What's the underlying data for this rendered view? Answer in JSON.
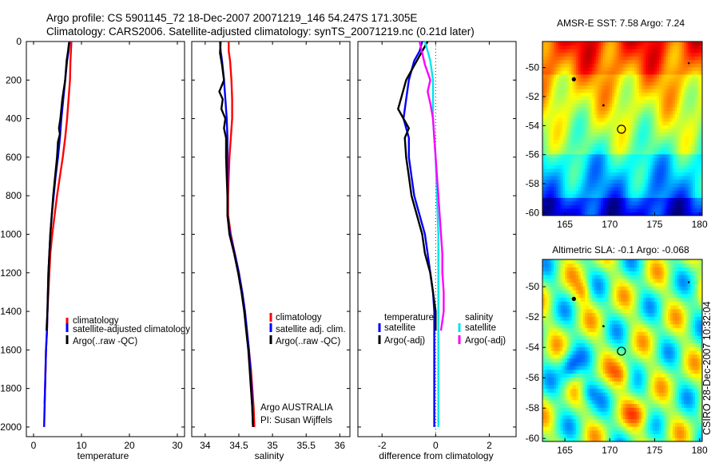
{
  "header": {
    "line1": "Argo profile: CS 5901145_72 18-Dec-2007 20071219_146 54.247S 171.305E",
    "line2": "Climatology: CARS2006. Satellite-adjusted climatology: synTS_20071219.nc (0.21d later)"
  },
  "side_stamp": "CSIRO 28-Dec-2007 10:32:04",
  "colors": {
    "red": "#ff0000",
    "blue": "#0000ff",
    "black": "#000000",
    "cyan": "#00e5ee",
    "magenta": "#ff00ff"
  },
  "chart_data": [
    {
      "type": "line",
      "id": "temperature",
      "xlabel": "temperature",
      "xlim": [
        -1.5,
        31.5
      ],
      "xticks": [
        0,
        10,
        20,
        30
      ],
      "ylim": [
        2050,
        0
      ],
      "yticks": [
        0,
        200,
        400,
        600,
        800,
        1000,
        1200,
        1400,
        1600,
        1800,
        2000
      ],
      "legend": {
        "position": "bottom-right",
        "entries": [
          "climatology",
          "satellite-adjusted climatology",
          "Argo(..raw -QC)"
        ]
      },
      "series": [
        {
          "name": "climatology",
          "color": "red",
          "points": [
            [
              7.9,
              0
            ],
            [
              7.8,
              50
            ],
            [
              7.7,
              100
            ],
            [
              7.6,
              200
            ],
            [
              7.3,
              300
            ],
            [
              7.0,
              400
            ],
            [
              6.6,
              500
            ],
            [
              6.1,
              600
            ],
            [
              5.5,
              700
            ],
            [
              4.9,
              800
            ],
            [
              4.4,
              900
            ],
            [
              3.9,
              1000
            ],
            [
              3.5,
              1100
            ],
            [
              3.3,
              1200
            ],
            [
              3.1,
              1300
            ],
            [
              2.9,
              1400
            ],
            [
              2.8,
              1500
            ],
            [
              2.6,
              1600
            ],
            [
              2.5,
              1700
            ],
            [
              2.4,
              1800
            ],
            [
              2.3,
              1880
            ]
          ]
        },
        {
          "name": "satellite-adjusted climatology",
          "color": "blue",
          "points": [
            [
              7.5,
              0
            ],
            [
              7.3,
              50
            ],
            [
              7.0,
              100
            ],
            [
              6.6,
              200
            ],
            [
              6.2,
              300
            ],
            [
              5.8,
              400
            ],
            [
              5.5,
              500
            ],
            [
              5.1,
              600
            ],
            [
              4.6,
              700
            ],
            [
              4.2,
              800
            ],
            [
              3.8,
              900
            ],
            [
              3.5,
              1000
            ],
            [
              3.3,
              1100
            ],
            [
              3.1,
              1200
            ],
            [
              3.0,
              1300
            ],
            [
              2.9,
              1400
            ],
            [
              2.8,
              1500
            ],
            [
              2.6,
              1600
            ],
            [
              2.4,
              1800
            ],
            [
              2.2,
              2000
            ]
          ]
        },
        {
          "name": "Argo(..raw -QC)",
          "color": "black",
          "points": [
            [
              7.4,
              5
            ],
            [
              7.2,
              50
            ],
            [
              6.9,
              100
            ],
            [
              6.6,
              200
            ],
            [
              6.0,
              300
            ],
            [
              5.6,
              400
            ],
            [
              5.3,
              450
            ],
            [
              5.5,
              480
            ],
            [
              5.1,
              520
            ],
            [
              4.9,
              600
            ],
            [
              4.5,
              700
            ],
            [
              4.1,
              800
            ],
            [
              3.8,
              900
            ],
            [
              3.5,
              1000
            ],
            [
              3.3,
              1100
            ],
            [
              3.1,
              1200
            ],
            [
              3.0,
              1300
            ],
            [
              2.9,
              1400
            ],
            [
              2.7,
              1500
            ]
          ]
        }
      ]
    },
    {
      "type": "line",
      "id": "salinity",
      "xlabel": "salinity",
      "xlim": [
        33.8,
        36.15
      ],
      "xticks": [
        34,
        34.5,
        35,
        35.5,
        36
      ],
      "ylim": [
        2050,
        0
      ],
      "legend": {
        "position": "bottom-right",
        "entries": [
          "climatology",
          "satellite adj. clim.",
          "Argo(..raw -QC)"
        ]
      },
      "annotation": [
        "Argo AUSTRALIA",
        "PI: Susan Wijffels"
      ],
      "series": [
        {
          "name": "climatology",
          "color": "red",
          "points": [
            [
              34.35,
              0
            ],
            [
              34.35,
              50
            ],
            [
              34.37,
              100
            ],
            [
              34.39,
              200
            ],
            [
              34.4,
              300
            ],
            [
              34.4,
              400
            ],
            [
              34.38,
              500
            ],
            [
              34.36,
              600
            ],
            [
              34.35,
              700
            ],
            [
              34.34,
              800
            ],
            [
              34.34,
              900
            ],
            [
              34.38,
              1000
            ],
            [
              34.44,
              1100
            ],
            [
              34.5,
              1200
            ],
            [
              34.55,
              1300
            ],
            [
              34.59,
              1400
            ],
            [
              34.62,
              1500
            ],
            [
              34.65,
              1600
            ],
            [
              34.68,
              1700
            ],
            [
              34.7,
              1800
            ],
            [
              34.72,
              1900
            ],
            [
              34.73,
              2000
            ]
          ]
        },
        {
          "name": "satellite adj. clim.",
          "color": "blue",
          "points": [
            [
              34.22,
              0
            ],
            [
              34.23,
              50
            ],
            [
              34.25,
              100
            ],
            [
              34.28,
              200
            ],
            [
              34.3,
              300
            ],
            [
              34.32,
              400
            ],
            [
              34.33,
              500
            ],
            [
              34.33,
              600
            ],
            [
              34.33,
              700
            ],
            [
              34.33,
              800
            ],
            [
              34.33,
              900
            ],
            [
              34.37,
              1000
            ],
            [
              34.44,
              1100
            ],
            [
              34.5,
              1200
            ],
            [
              34.55,
              1300
            ],
            [
              34.59,
              1400
            ],
            [
              34.62,
              1500
            ],
            [
              34.65,
              1600
            ],
            [
              34.67,
              1700
            ],
            [
              34.69,
              1800
            ],
            [
              34.7,
              1900
            ],
            [
              34.71,
              2000
            ]
          ]
        },
        {
          "name": "Argo(..raw -QC)",
          "color": "black",
          "points": [
            [
              34.23,
              0
            ],
            [
              34.22,
              60
            ],
            [
              34.25,
              120
            ],
            [
              34.28,
              200
            ],
            [
              34.21,
              260
            ],
            [
              34.26,
              300
            ],
            [
              34.24,
              350
            ],
            [
              34.3,
              400
            ],
            [
              34.28,
              450
            ],
            [
              34.31,
              500
            ],
            [
              34.31,
              600
            ],
            [
              34.32,
              700
            ],
            [
              34.33,
              800
            ],
            [
              34.33,
              900
            ],
            [
              34.36,
              1000
            ],
            [
              34.43,
              1100
            ],
            [
              34.49,
              1200
            ],
            [
              34.54,
              1300
            ],
            [
              34.58,
              1400
            ],
            [
              34.61,
              1500
            ],
            [
              34.64,
              1600
            ],
            [
              34.66,
              1700
            ],
            [
              34.68,
              1800
            ],
            [
              34.7,
              1900
            ],
            [
              34.71,
              2000
            ]
          ]
        }
      ]
    },
    {
      "type": "line",
      "id": "difference",
      "xlabel": "difference from climatology",
      "xlim": [
        -2.9,
        3.0
      ],
      "xticks": [
        -2,
        0,
        2
      ],
      "ylim": [
        2050,
        0
      ],
      "legend": {
        "position": "bottom",
        "left_title": "temperature",
        "right_title": "salinity",
        "left_entries": [
          "satellite",
          "Argo(-adj)"
        ],
        "right_entries": [
          "satellite",
          "Argo(-adj)"
        ]
      },
      "series": [
        {
          "name": "temperature satellite",
          "color": "blue",
          "points": [
            [
              -0.5,
              0
            ],
            [
              -0.6,
              50
            ],
            [
              -0.8,
              100
            ],
            [
              -1.0,
              200
            ],
            [
              -1.1,
              300
            ],
            [
              -1.2,
              400
            ],
            [
              -1.0,
              500
            ],
            [
              -1.0,
              600
            ],
            [
              -0.9,
              700
            ],
            [
              -0.8,
              800
            ],
            [
              -0.6,
              900
            ],
            [
              -0.4,
              1000
            ],
            [
              -0.3,
              1100
            ],
            [
              -0.2,
              1200
            ],
            [
              -0.1,
              1300
            ],
            [
              -0.05,
              1400
            ],
            [
              -0.05,
              1500
            ],
            [
              -0.05,
              1800
            ],
            [
              -0.05,
              2000
            ]
          ]
        },
        {
          "name": "temperature Argo(-adj)",
          "color": "black",
          "points": [
            [
              -0.3,
              0
            ],
            [
              -0.5,
              50
            ],
            [
              -0.7,
              100
            ],
            [
              -0.9,
              150
            ],
            [
              -1.1,
              200
            ],
            [
              -1.3,
              300
            ],
            [
              -1.4,
              350
            ],
            [
              -1.2,
              400
            ],
            [
              -1.0,
              450
            ],
            [
              -1.15,
              500
            ],
            [
              -1.1,
              600
            ],
            [
              -1.0,
              700
            ],
            [
              -0.9,
              800
            ],
            [
              -0.7,
              900
            ],
            [
              -0.5,
              1000
            ],
            [
              -0.4,
              1100
            ],
            [
              -0.2,
              1200
            ],
            [
              -0.1,
              1300
            ],
            [
              0.0,
              1400
            ],
            [
              0.0,
              1500
            ]
          ]
        },
        {
          "name": "salinity satellite",
          "color": "cyan",
          "points": [
            [
              -0.4,
              0
            ],
            [
              -0.3,
              50
            ],
            [
              -0.2,
              100
            ],
            [
              -0.1,
              200
            ],
            [
              -0.1,
              300
            ],
            [
              -0.1,
              400
            ],
            [
              -0.05,
              500
            ],
            [
              0.0,
              600
            ],
            [
              0.05,
              800
            ],
            [
              0.1,
              1000
            ],
            [
              0.1,
              1200
            ],
            [
              0.1,
              1400
            ],
            [
              0.1,
              1600
            ],
            [
              0.1,
              1800
            ],
            [
              0.1,
              2000
            ]
          ]
        },
        {
          "name": "salinity Argo(-adj)",
          "color": "magenta",
          "points": [
            [
              -0.6,
              0
            ],
            [
              -0.5,
              60
            ],
            [
              -0.4,
              120
            ],
            [
              -0.2,
              200
            ],
            [
              -0.3,
              260
            ],
            [
              -0.2,
              320
            ],
            [
              -0.1,
              400
            ],
            [
              -0.05,
              500
            ],
            [
              0.0,
              600
            ],
            [
              0.1,
              800
            ],
            [
              0.2,
              1000
            ],
            [
              0.25,
              1100
            ],
            [
              0.25,
              1200
            ],
            [
              0.3,
              1300
            ],
            [
              0.3,
              1400
            ],
            [
              0.2,
              1500
            ]
          ]
        }
      ]
    },
    {
      "type": "heatmap",
      "id": "sst_map",
      "title": "AMSR-E SST: 7.58 Argo: 7.24",
      "xlim": [
        162.5,
        180.3
      ],
      "ylim": [
        -60.2,
        -48.2
      ],
      "xticks": [
        165,
        170,
        175,
        180
      ],
      "yticks": [
        -50,
        -52,
        -54,
        -56,
        -58,
        -60
      ],
      "marker": {
        "lon": 171.3,
        "lat": -54.25
      },
      "field": "sst"
    },
    {
      "type": "heatmap",
      "id": "sla_map",
      "title": "Altimetric SLA: -0.1 Argo: -0.068",
      "xlim": [
        162.5,
        180.3
      ],
      "ylim": [
        -60.2,
        -48.2
      ],
      "xticks": [
        165,
        170,
        175,
        180
      ],
      "yticks": [
        -50,
        -52,
        -54,
        -56,
        -58,
        -60
      ],
      "marker": {
        "lon": 171.3,
        "lat": -54.25
      },
      "field": "sla"
    }
  ]
}
